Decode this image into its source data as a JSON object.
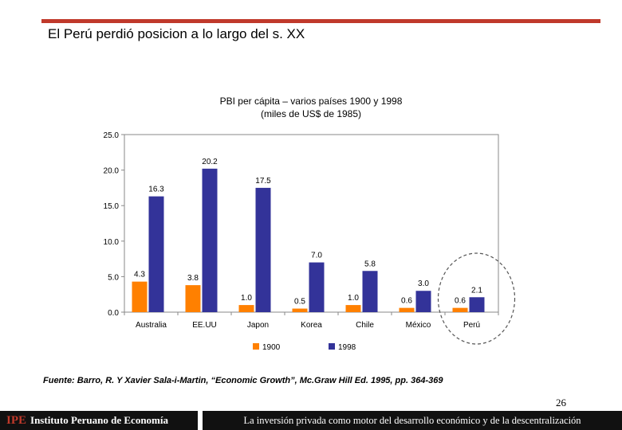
{
  "slide": {
    "title": "El Perú perdió posicion a lo largo del s. XX",
    "page_number": "26",
    "source": "Fuente: Barro, R. Y Xavier Sala-i-Martin, “Economic Growth”, Mc.Graw Hill Ed. 1995, pp. 364-369"
  },
  "footer": {
    "brand_mark": "IPE",
    "brand_name": "Instituto Peruano de Economía",
    "tagline": "La inversión privada como motor del desarrollo económico y de la descentralización"
  },
  "colors": {
    "rule": "#c0392b",
    "series_1900": "#ff8000",
    "series_1998": "#333399",
    "highlight_circle": "#555555"
  },
  "chart_data": {
    "type": "bar",
    "title": "PBI per cápita – varios países 1900 y 1998",
    "subtitle": "(miles de US$ de 1985)",
    "xlabel": "",
    "ylabel": "",
    "ylim": [
      0,
      25
    ],
    "yticks": [
      "0.0",
      "5.0",
      "10.0",
      "15.0",
      "20.0",
      "25.0"
    ],
    "categories": [
      "Australia",
      "EE.UU",
      "Japon",
      "Korea",
      "Chile",
      "México",
      "Perú"
    ],
    "series": [
      {
        "name": "1900",
        "values": [
          4.3,
          3.8,
          1.0,
          0.5,
          1.0,
          0.6,
          0.6
        ],
        "labels": [
          "4.3",
          "3.8",
          "1.0",
          "0.5",
          "1.0",
          "0.6",
          "0.6"
        ]
      },
      {
        "name": "1998",
        "values": [
          16.3,
          20.2,
          17.5,
          7.0,
          5.8,
          3.0,
          2.1
        ],
        "labels": [
          "16.3",
          "20.2",
          "17.5",
          "7.0",
          "5.8",
          "3.0",
          "2.1"
        ]
      }
    ],
    "legend_position": "bottom",
    "highlighted_category": "Perú"
  }
}
